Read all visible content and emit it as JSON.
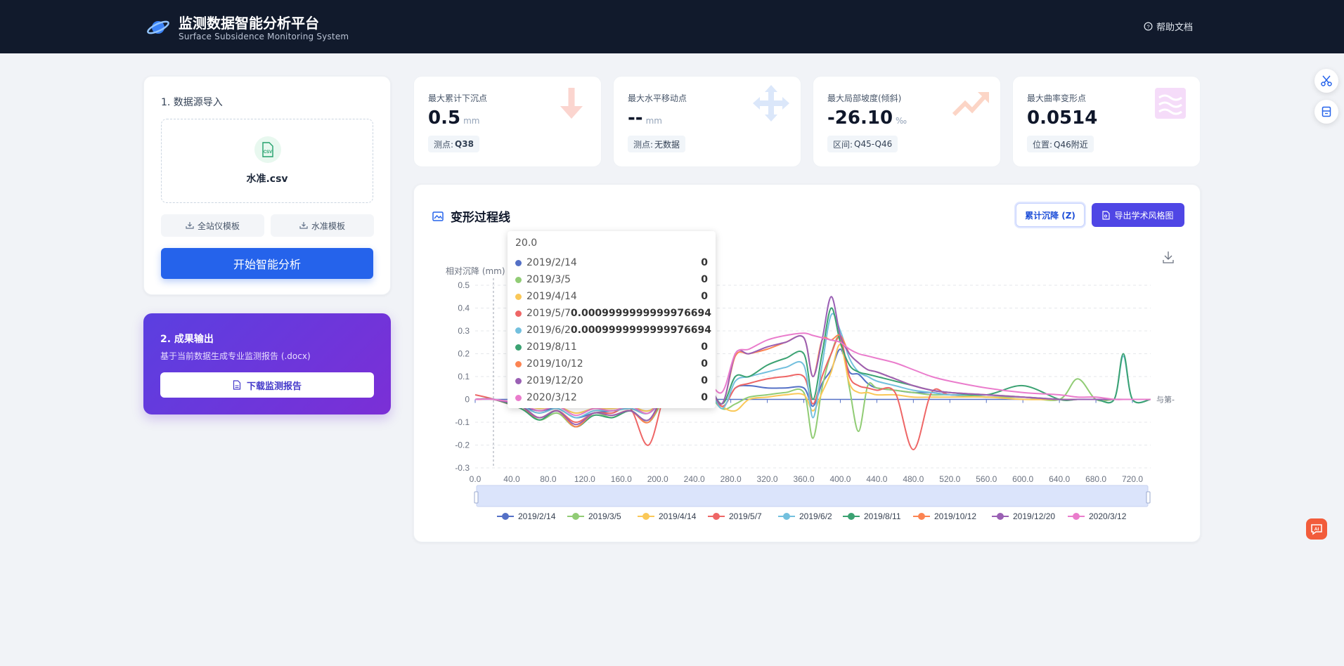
{
  "header": {
    "title": "监测数据智能分析平台",
    "subtitle": "Surface Subsidence Monitoring System",
    "help_label": "帮助文档"
  },
  "import_section": {
    "title": "1. 数据源导入",
    "file_icon_label": "CSV",
    "file_name": "水准.csv",
    "template_btn_1": "全站仪模板",
    "template_btn_2": "水准模板",
    "start_button": "开始智能分析"
  },
  "output_section": {
    "title": "2. 成果输出",
    "description": "基于当前数据生成专业监测报告 (.docx)",
    "download_button": "下载监测报告"
  },
  "stats": [
    {
      "label": "最大累计下沉点",
      "value": "0.5",
      "unit": "mm",
      "tag_prefix": "测点:",
      "tag_value": "Q38",
      "icon": "arrow-down-icon",
      "color": "#fde7e4"
    },
    {
      "label": "最大水平移动点",
      "value": "--",
      "unit": "mm",
      "tag_prefix": "测点:",
      "tag_value": "无数据",
      "icon": "move-arrows-icon",
      "color": "#e6eefb"
    },
    {
      "label": "最大局部坡度(倾斜)",
      "value": "-26.10",
      "unit": "‰",
      "tag_prefix": "区间:",
      "tag_value": "Q45-Q46",
      "icon": "trend-up-icon",
      "color": "#fde6dc"
    },
    {
      "label": "最大曲率变形点",
      "value": "0.0514",
      "unit": "",
      "tag_prefix": "位置:",
      "tag_value": "Q46附近",
      "icon": "waves-icon",
      "color": "#f7e6fb"
    }
  ],
  "chart_panel": {
    "title": "变形过程线",
    "mode_button": "累计沉降 (Z)",
    "export_button": "导出学术风格图"
  },
  "tooltip": {
    "header": "20.0",
    "rows": [
      {
        "name": "2019/2/14",
        "value": "0"
      },
      {
        "name": "2019/3/5",
        "value": "0"
      },
      {
        "name": "2019/4/14",
        "value": "0"
      },
      {
        "name": "2019/5/7",
        "value": "0.0009999999999976694"
      },
      {
        "name": "2019/6/2",
        "value": "0.0009999999999976694"
      },
      {
        "name": "2019/8/11",
        "value": "0"
      },
      {
        "name": "2019/10/12",
        "value": "0"
      },
      {
        "name": "2019/12/20",
        "value": "0"
      },
      {
        "name": "2020/3/12",
        "value": "0"
      }
    ]
  },
  "chart_data": {
    "type": "line",
    "ylabel": "相对沉降 (mm)",
    "xlabel": "与第-",
    "xlim": [
      0,
      740
    ],
    "ylim": [
      -0.3,
      0.5
    ],
    "xticks": [
      "0.0",
      "40.0",
      "80.0",
      "120.0",
      "160.0",
      "200.0",
      "240.0",
      "280.0",
      "320.0",
      "360.0",
      "400.0",
      "440.0",
      "480.0",
      "520.0",
      "560.0",
      "600.0",
      "640.0",
      "680.0",
      "720.0"
    ],
    "yticks": [
      "0.5",
      "0.4",
      "0.3",
      "0.2",
      "0.1",
      "0",
      "-0.1",
      "-0.2",
      "-0.3"
    ],
    "grid": true,
    "legend_position": "bottom",
    "x": [
      0,
      20,
      50,
      70,
      90,
      110,
      130,
      150,
      170,
      190,
      210,
      230,
      250,
      270,
      285,
      300,
      320,
      340,
      360,
      370,
      380,
      390,
      400,
      410,
      420,
      430,
      440,
      460,
      480,
      500,
      520,
      560,
      600,
      640,
      660,
      680,
      700,
      710,
      720,
      740
    ],
    "series": [
      {
        "name": "2019/2/14",
        "color": "#5470c6",
        "values": [
          0,
          0,
          -0.03,
          -0.05,
          -0.04,
          -0.08,
          -0.06,
          -0.05,
          -0.04,
          -0.06,
          0.02,
          0.05,
          0.09,
          -0.03,
          0.05,
          0.06,
          0.05,
          0.05,
          0.05,
          -0.03,
          0.07,
          0.13,
          0.22,
          0.12,
          0.11,
          0.07,
          0.05,
          0.04,
          0.03,
          0.03,
          0.02,
          0.01,
          0.01,
          0.0,
          0.0,
          0.0,
          0.0,
          0.0,
          0.0,
          0.0
        ]
      },
      {
        "name": "2019/3/5",
        "color": "#91cc75",
        "values": [
          0,
          0,
          -0.03,
          -0.09,
          -0.06,
          -0.12,
          -0.06,
          -0.08,
          -0.05,
          -0.1,
          0.02,
          0.04,
          0.05,
          -0.04,
          -0.02,
          0.01,
          0.02,
          0.03,
          0.03,
          -0.17,
          0.05,
          0.2,
          0.27,
          0.05,
          -0.14,
          0.06,
          0.05,
          0.04,
          0.03,
          0.02,
          0.02,
          0.01,
          0.01,
          0.0,
          0.09,
          0.0,
          0.0,
          0.0,
          0.0,
          0.0
        ]
      },
      {
        "name": "2019/4/14",
        "color": "#fac858",
        "values": [
          0,
          0,
          -0.02,
          -0.04,
          -0.03,
          -0.06,
          -0.04,
          -0.04,
          -0.03,
          -0.05,
          0.01,
          0.03,
          0.04,
          -0.03,
          -0.05,
          0.0,
          0.01,
          0.02,
          0.02,
          -0.05,
          0.03,
          0.12,
          0.24,
          0.07,
          0.03,
          0.03,
          0.02,
          0.02,
          0.01,
          0.01,
          0.01,
          0.01,
          0.0,
          0.0,
          0.0,
          0.0,
          0.0,
          0.0,
          0.0,
          0.0
        ]
      },
      {
        "name": "2019/5/7",
        "color": "#ee6666",
        "values": [
          0.02,
          0.001,
          -0.04,
          -0.08,
          -0.05,
          -0.1,
          -0.06,
          -0.06,
          -0.04,
          -0.2,
          0.05,
          0.07,
          0.09,
          -0.03,
          0.05,
          0.07,
          0.09,
          0.1,
          0.1,
          -0.02,
          0.1,
          0.2,
          0.27,
          0.1,
          0.06,
          0.05,
          0.04,
          0.03,
          -0.22,
          0.03,
          0.02,
          0.02,
          0.01,
          0.0,
          0.0,
          0.0,
          0.0,
          0.0,
          0.0,
          0.0
        ]
      },
      {
        "name": "2019/6/2",
        "color": "#73c0de",
        "values": [
          0,
          0.001,
          -0.03,
          -0.06,
          -0.04,
          -0.08,
          -0.05,
          -0.05,
          -0.04,
          -0.06,
          0.03,
          0.06,
          0.1,
          -0.04,
          0.08,
          0.1,
          0.12,
          0.14,
          0.15,
          -0.08,
          0.15,
          0.37,
          0.3,
          0.18,
          0.12,
          0.1,
          0.08,
          0.06,
          0.04,
          0.03,
          0.02,
          0.02,
          0.01,
          0.0,
          0.0,
          0.0,
          0.0,
          0.19,
          0.0,
          0.0
        ]
      },
      {
        "name": "2019/8/11",
        "color": "#3ba272",
        "values": [
          0,
          0,
          -0.04,
          -0.09,
          -0.05,
          -0.12,
          -0.07,
          -0.08,
          -0.05,
          -0.09,
          0.04,
          0.06,
          0.1,
          -0.02,
          0.1,
          0.1,
          0.15,
          0.18,
          0.2,
          0.0,
          0.2,
          0.4,
          0.25,
          0.15,
          0.12,
          0.11,
          0.1,
          0.08,
          0.06,
          0.04,
          0.03,
          0.02,
          0.06,
          0.0,
          0.0,
          0.0,
          0.0,
          0.2,
          0.0,
          0.0
        ]
      },
      {
        "name": "2019/10/12",
        "color": "#fc8452",
        "values": [
          0,
          0,
          -0.03,
          -0.08,
          -0.05,
          -0.12,
          -0.06,
          -0.07,
          -0.05,
          -0.1,
          0.04,
          0.06,
          0.11,
          -0.02,
          0.19,
          0.2,
          0.22,
          0.25,
          0.27,
          0.1,
          0.26,
          0.26,
          0.28,
          0.2,
          0.16,
          0.13,
          0.12,
          0.09,
          0.06,
          0.04,
          0.03,
          0.02,
          0.01,
          0.0,
          0.0,
          0.0,
          0.0,
          0.0,
          0.0,
          0.0
        ]
      },
      {
        "name": "2019/12/20",
        "color": "#9a60b4",
        "values": [
          0,
          0,
          -0.03,
          -0.08,
          -0.05,
          -0.11,
          -0.06,
          -0.07,
          -0.05,
          -0.09,
          0.04,
          0.06,
          0.12,
          -0.02,
          0.2,
          0.2,
          0.23,
          0.25,
          0.27,
          0.1,
          0.26,
          0.45,
          0.28,
          0.2,
          0.16,
          0.13,
          0.12,
          0.09,
          0.06,
          0.04,
          0.03,
          0.02,
          0.01,
          0.0,
          0.0,
          0.0,
          0.0,
          0.0,
          0.0,
          0.0
        ]
      },
      {
        "name": "2020/3/12",
        "color": "#ea7ccc",
        "values": [
          0,
          0,
          -0.02,
          -0.05,
          -0.03,
          -0.07,
          -0.04,
          -0.05,
          -0.03,
          -0.06,
          0.03,
          0.05,
          0.1,
          0.03,
          0.2,
          0.22,
          0.26,
          0.28,
          0.29,
          0.28,
          0.27,
          0.26,
          0.25,
          0.22,
          0.2,
          0.19,
          0.18,
          0.16,
          0.13,
          0.1,
          0.08,
          0.05,
          0.03,
          0.02,
          0.01,
          0.01,
          0.0,
          0.0,
          0.0,
          0.0
        ]
      }
    ]
  }
}
